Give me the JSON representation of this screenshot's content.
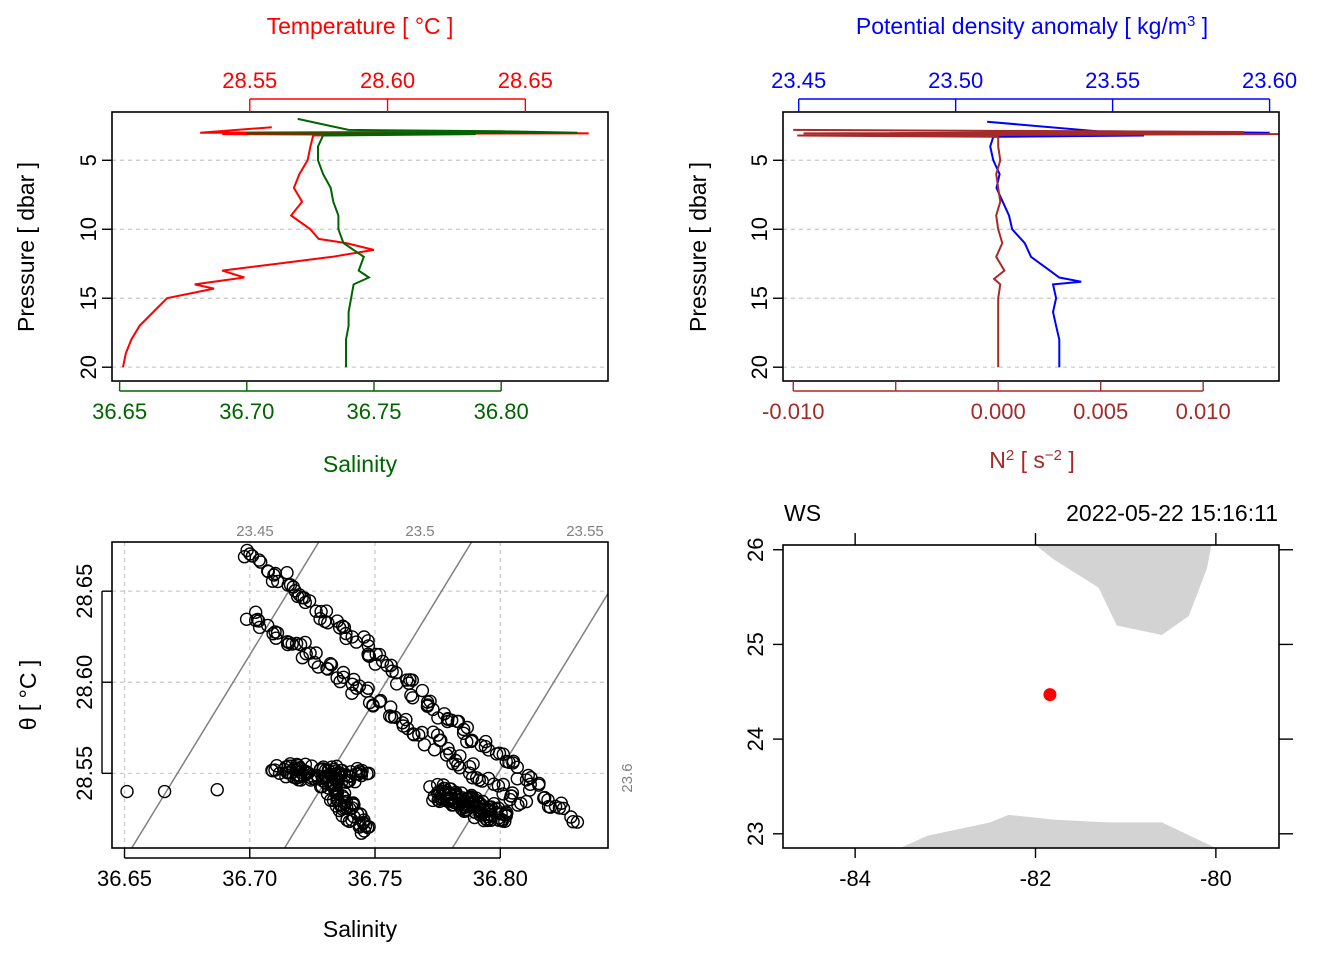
{
  "chart_data": [
    {
      "type": "line",
      "panel": "temperature-salinity-profile",
      "title": "",
      "y_axis": {
        "label": "Pressure [ dbar ]",
        "ticks": [
          5,
          10,
          15,
          20
        ],
        "lim": [
          21,
          1.5
        ],
        "reversed": true
      },
      "top_axis": {
        "label": "Temperature [ °C ]",
        "color": "#ff0000",
        "ticks": [
          "28.55",
          "28.60",
          "28.65"
        ],
        "lim": [
          28.5,
          28.68
        ]
      },
      "bottom_axis": {
        "label": "Salinity",
        "color": "#006400",
        "ticks": [
          "36.65",
          "36.70",
          "36.75",
          "36.80"
        ],
        "lim": [
          36.647,
          36.842
        ]
      },
      "series": [
        {
          "name": "Temperature",
          "color": "#ff0000",
          "axis": "top",
          "points": [
            [
              28.558,
              2.6
            ],
            [
              28.532,
              3.0
            ],
            [
              28.6,
              2.95
            ],
            [
              28.65,
              3.0
            ],
            [
              28.673,
              3.05
            ],
            [
              28.54,
              3.1
            ],
            [
              28.595,
              3.15
            ],
            [
              28.573,
              3.2
            ],
            [
              28.572,
              4
            ],
            [
              28.571,
              5
            ],
            [
              28.568,
              6
            ],
            [
              28.566,
              7
            ],
            [
              28.569,
              8
            ],
            [
              28.565,
              9
            ],
            [
              28.572,
              10
            ],
            [
              28.575,
              10.7
            ],
            [
              28.585,
              11
            ],
            [
              28.595,
              11.5
            ],
            [
              28.58,
              12
            ],
            [
              28.56,
              12.5
            ],
            [
              28.54,
              13
            ],
            [
              28.548,
              13.5
            ],
            [
              28.53,
              14
            ],
            [
              28.537,
              14.3
            ],
            [
              28.52,
              15
            ],
            [
              28.515,
              16
            ],
            [
              28.51,
              17
            ],
            [
              28.507,
              18
            ],
            [
              28.505,
              19
            ],
            [
              28.504,
              20
            ]
          ]
        },
        {
          "name": "Salinity",
          "color": "#006400",
          "axis": "bottom",
          "points": [
            [
              36.72,
              2.0
            ],
            [
              36.74,
              2.8
            ],
            [
              36.8,
              2.9
            ],
            [
              36.83,
              3.0
            ],
            [
              36.7,
              3.05
            ],
            [
              36.79,
              3.1
            ],
            [
              36.73,
              3.2
            ],
            [
              36.728,
              4
            ],
            [
              36.728,
              5
            ],
            [
              36.73,
              6
            ],
            [
              36.733,
              7
            ],
            [
              36.734,
              8
            ],
            [
              36.736,
              9
            ],
            [
              36.736,
              10
            ],
            [
              36.738,
              11
            ],
            [
              36.742,
              11.5
            ],
            [
              36.746,
              12
            ],
            [
              36.744,
              13
            ],
            [
              36.748,
              13.5
            ],
            [
              36.742,
              14
            ],
            [
              36.741,
              15
            ],
            [
              36.74,
              16
            ],
            [
              36.74,
              17
            ],
            [
              36.739,
              18
            ],
            [
              36.739,
              19
            ],
            [
              36.739,
              20
            ]
          ]
        }
      ]
    },
    {
      "type": "line",
      "panel": "density-n2-profile",
      "title": "",
      "y_axis": {
        "label": "Pressure [ dbar ]",
        "ticks": [
          5,
          10,
          15,
          20
        ],
        "lim": [
          21,
          1.5
        ],
        "reversed": true
      },
      "top_axis": {
        "label": "Potential density anomaly [ kg/m³ ]",
        "color": "#0000ff",
        "ticks": [
          "23.45",
          "23.50",
          "23.55",
          "23.60"
        ],
        "lim": [
          23.445,
          23.603
        ]
      },
      "bottom_axis": {
        "label": "N² [ s⁻² ]",
        "color": "#a52a2a",
        "ticks": [
          "-0.010",
          "0.000",
          "0.005",
          "0.010"
        ],
        "extra_tick": -0.005,
        "lim": [
          -0.0105,
          0.0137
        ]
      },
      "series": [
        {
          "name": "Potential density anomaly",
          "color": "#0000ff",
          "axis": "top",
          "points": [
            [
              23.51,
              2.2
            ],
            [
              23.545,
              2.9
            ],
            [
              23.6,
              3.0
            ],
            [
              23.47,
              3.1
            ],
            [
              23.56,
              3.2
            ],
            [
              23.512,
              3.3
            ],
            [
              23.511,
              4
            ],
            [
              23.512,
              5
            ],
            [
              23.514,
              6
            ],
            [
              23.513,
              7
            ],
            [
              23.515,
              8
            ],
            [
              23.517,
              9
            ],
            [
              23.518,
              10
            ],
            [
              23.522,
              11
            ],
            [
              23.524,
              12
            ],
            [
              23.527,
              12.5
            ],
            [
              23.53,
              13
            ],
            [
              23.533,
              13.5
            ],
            [
              23.54,
              13.8
            ],
            [
              23.531,
              14
            ],
            [
              23.532,
              15
            ],
            [
              23.531,
              16
            ],
            [
              23.532,
              17
            ],
            [
              23.533,
              18
            ],
            [
              23.533,
              19
            ],
            [
              23.533,
              20
            ]
          ]
        },
        {
          "name": "N²",
          "color": "#a52a2a",
          "axis": "bottom",
          "points": [
            [
              -0.01,
              2.8
            ],
            [
              0.012,
              2.95
            ],
            [
              -0.0095,
              3.05
            ],
            [
              0.014,
              3.1
            ],
            [
              -0.0098,
              3.2
            ],
            [
              0.0,
              3.3
            ],
            [
              0.0,
              4
            ],
            [
              0.0001,
              5
            ],
            [
              -0.0001,
              6
            ],
            [
              0.0,
              7
            ],
            [
              0.0001,
              8
            ],
            [
              -0.0001,
              9
            ],
            [
              0.0,
              10
            ],
            [
              0.0002,
              11
            ],
            [
              -0.0001,
              12
            ],
            [
              0.0003,
              13
            ],
            [
              -0.0002,
              13.6
            ],
            [
              0.0001,
              14
            ],
            [
              0.0,
              15
            ],
            [
              0.0,
              16
            ],
            [
              0.0,
              17
            ],
            [
              0.0,
              18
            ],
            [
              0.0,
              19
            ],
            [
              0.0,
              20
            ]
          ]
        }
      ]
    },
    {
      "type": "scatter",
      "panel": "ts-diagram",
      "title": "",
      "xlabel": "Salinity",
      "ylabel": "θ [ °C ]",
      "xlim": [
        36.645,
        36.843
      ],
      "ylim": [
        28.509,
        28.677
      ],
      "x_ticks": [
        "36.65",
        "36.70",
        "36.75",
        "36.80"
      ],
      "y_ticks": [
        "28.55",
        "28.60",
        "28.65"
      ],
      "grid": true,
      "density_contour_labels": [
        "23.45",
        "23.5",
        "23.55",
        "23.6"
      ],
      "isopycnal_color": "#808080",
      "branches": [
        {
          "x0": 36.699,
          "y0": 28.672,
          "x1": 36.83,
          "y1": 28.524,
          "spread": 0.003,
          "n": 110
        },
        {
          "x0": 36.7,
          "y0": 28.638,
          "x1": 36.81,
          "y1": 28.532,
          "spread": 0.003,
          "n": 90
        },
        {
          "x0": 36.712,
          "y0": 28.552,
          "x1": 36.745,
          "y1": 28.548,
          "spread": 0.004,
          "n": 90
        },
        {
          "x0": 36.73,
          "y0": 28.548,
          "x1": 36.745,
          "y1": 28.52,
          "spread": 0.004,
          "n": 60
        },
        {
          "x0": 36.775,
          "y0": 28.54,
          "x1": 36.8,
          "y1": 28.526,
          "spread": 0.004,
          "n": 120
        }
      ],
      "outliers": [
        [
          36.651,
          28.54
        ],
        [
          36.666,
          28.54
        ],
        [
          36.687,
          28.541
        ]
      ]
    },
    {
      "type": "map",
      "panel": "station-map",
      "title": "",
      "station_label": "WS",
      "timestamp": "2022-05-22 15:16:11",
      "xlim": [
        -84.8,
        -79.3
      ],
      "ylim": [
        22.85,
        26.05
      ],
      "x_ticks": [
        "-84",
        "-82",
        "-80"
      ],
      "y_ticks": [
        "23",
        "24",
        "25",
        "26"
      ],
      "station": {
        "lon": -81.84,
        "lat": 24.47,
        "color": "#ff0000"
      },
      "land_color": "#d3d3d3",
      "land": [
        [
          [
            -82.0,
            26.05
          ],
          [
            -80.05,
            26.05
          ],
          [
            -80.1,
            25.8
          ],
          [
            -80.3,
            25.3
          ],
          [
            -80.6,
            25.1
          ],
          [
            -81.1,
            25.2
          ],
          [
            -81.3,
            25.6
          ],
          [
            -81.8,
            25.9
          ],
          [
            -82.0,
            26.05
          ]
        ],
        [
          [
            -83.5,
            22.85
          ],
          [
            -83.2,
            22.98
          ],
          [
            -82.5,
            23.12
          ],
          [
            -82.3,
            23.2
          ],
          [
            -81.8,
            23.15
          ],
          [
            -81.2,
            23.12
          ],
          [
            -80.6,
            23.12
          ],
          [
            -80.0,
            22.85
          ]
        ]
      ]
    }
  ]
}
